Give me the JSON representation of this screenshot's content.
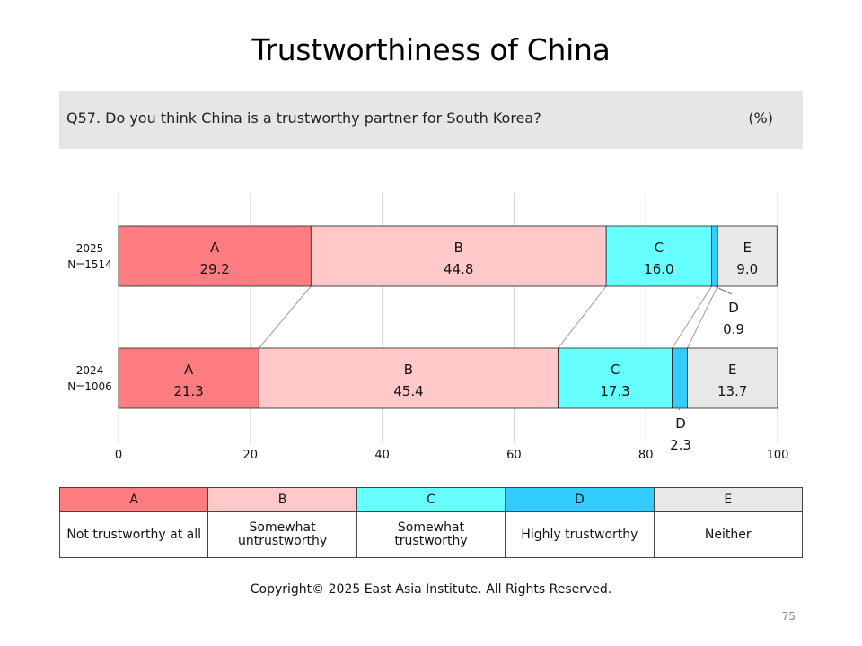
{
  "title": "Trustworthiness of China",
  "question": {
    "text": "Q57. Do you think China is a trustworthy partner for South Korea?",
    "unit": "(%)"
  },
  "chart_data": {
    "type": "bar",
    "orientation": "horizontal",
    "stacked": true,
    "xlim": [
      0,
      100
    ],
    "x_ticks": [
      "0",
      "20",
      "40",
      "60",
      "80",
      "100"
    ],
    "grid": true,
    "colors": {
      "A": "#ff7c80",
      "B": "#ffc9c9",
      "C": "#66ffff",
      "D": "#33ccff",
      "E": "#e8e8e8"
    },
    "rows": [
      {
        "year": "2025",
        "n": "N=1514",
        "segments": [
          {
            "key": "A",
            "value": 29.2,
            "label": "29.2"
          },
          {
            "key": "B",
            "value": 44.8,
            "label": "44.8"
          },
          {
            "key": "C",
            "value": 16.0,
            "label": "16.0"
          },
          {
            "key": "D",
            "value": 0.9,
            "label": "0.9"
          },
          {
            "key": "E",
            "value": 9.0,
            "label": "9.0"
          }
        ]
      },
      {
        "year": "2024",
        "n": "N=1006",
        "segments": [
          {
            "key": "A",
            "value": 21.3,
            "label": "21.3"
          },
          {
            "key": "B",
            "value": 45.4,
            "label": "45.4"
          },
          {
            "key": "C",
            "value": 17.3,
            "label": "17.3"
          },
          {
            "key": "D",
            "value": 2.3,
            "label": "2.3"
          },
          {
            "key": "E",
            "value": 13.7,
            "label": "13.7"
          }
        ]
      }
    ]
  },
  "legend": {
    "items": [
      {
        "key": "A",
        "desc": "Not trustworthy at all"
      },
      {
        "key": "B",
        "desc_line1": "Somewhat",
        "desc_line2": "untrustworthy"
      },
      {
        "key": "C",
        "desc_line1": "Somewhat",
        "desc_line2": "trustworthy"
      },
      {
        "key": "D",
        "desc": "Highly trustworthy"
      },
      {
        "key": "E",
        "desc": "Neither"
      }
    ]
  },
  "copyright": "Copyright© 2025 East Asia Institute. All Rights Reserved.",
  "page_number": "75"
}
